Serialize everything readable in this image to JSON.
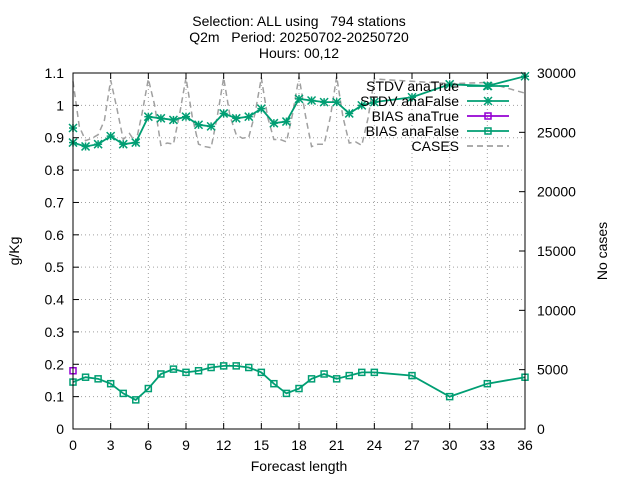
{
  "chart_data": {
    "type": "line",
    "title_lines": [
      "Selection: ALL using   794 stations",
      "Q2m   Period: 20250702-20250720",
      "Hours: 00,12"
    ],
    "xlabel": "Forecast length",
    "ylabel": "g/Kg",
    "y2label": "No cases",
    "xlim": [
      0,
      36
    ],
    "ylim": [
      0,
      1.1
    ],
    "y2lim": [
      0,
      30000
    ],
    "xticks": [
      0,
      3,
      6,
      9,
      12,
      15,
      18,
      21,
      24,
      27,
      30,
      33,
      36
    ],
    "yticks": [
      0,
      0.1,
      0.2,
      0.3,
      0.4,
      0.5,
      0.6,
      0.7,
      0.8,
      0.9,
      1,
      1.1
    ],
    "y2ticks": [
      0,
      5000,
      10000,
      15000,
      20000,
      25000,
      30000
    ],
    "grid": true,
    "legend_position": "top-right",
    "series": [
      {
        "name": "STDV anaTrue",
        "color": "#009e73",
        "axis": "y",
        "dash": "solid",
        "marker": "star",
        "x": [
          0
        ],
        "y": [
          0.93
        ]
      },
      {
        "name": "STDV anaFalse",
        "color": "#009e73",
        "axis": "y",
        "dash": "solid",
        "marker": "star",
        "x": [
          0,
          1,
          2,
          3,
          4,
          5,
          6,
          7,
          8,
          9,
          10,
          11,
          12,
          13,
          14,
          15,
          16,
          17,
          18,
          19,
          20,
          21,
          22,
          23,
          24,
          27,
          30,
          33,
          36
        ],
        "y": [
          0.885,
          0.873,
          0.88,
          0.905,
          0.88,
          0.885,
          0.965,
          0.96,
          0.955,
          0.965,
          0.94,
          0.935,
          0.975,
          0.96,
          0.965,
          0.99,
          0.945,
          0.95,
          1.02,
          1.015,
          1.01,
          1.01,
          0.975,
          1.0,
          1.01,
          1.025,
          1.065,
          1.06,
          1.09
        ]
      },
      {
        "name": "BIAS anaTrue",
        "color": "#9400d3",
        "axis": "y",
        "dash": "solid",
        "marker": "square",
        "x": [
          0
        ],
        "y": [
          0.18
        ]
      },
      {
        "name": "BIAS anaFalse",
        "color": "#009e73",
        "axis": "y",
        "dash": "solid",
        "marker": "square",
        "x": [
          0,
          1,
          2,
          3,
          4,
          5,
          6,
          7,
          8,
          9,
          10,
          11,
          12,
          13,
          14,
          15,
          16,
          17,
          18,
          19,
          20,
          21,
          22,
          23,
          24,
          27,
          30,
          33,
          36
        ],
        "y": [
          0.145,
          0.16,
          0.155,
          0.14,
          0.11,
          0.09,
          0.125,
          0.17,
          0.185,
          0.175,
          0.18,
          0.19,
          0.195,
          0.195,
          0.19,
          0.175,
          0.14,
          0.11,
          0.125,
          0.155,
          0.17,
          0.155,
          0.165,
          0.175,
          0.175,
          0.165,
          0.1,
          0.14,
          0.16
        ]
      },
      {
        "name": "CASES",
        "color": "#a0a0a0",
        "axis": "y2",
        "dash": "dashed",
        "marker": "none",
        "x": [
          0,
          0.5,
          1,
          1.5,
          2,
          2.5,
          3,
          3.5,
          4,
          4.5,
          5,
          5.5,
          6,
          6.5,
          7,
          7.5,
          8,
          8.5,
          9,
          9.5,
          10,
          10.5,
          11,
          11.5,
          12,
          12.5,
          13,
          13.5,
          14,
          14.5,
          15,
          15.5,
          16,
          16.5,
          17,
          17.5,
          18,
          18.5,
          19,
          19.5,
          20,
          20.5,
          21,
          21.5,
          22,
          22.5,
          23,
          23.5,
          24,
          27,
          30,
          33,
          36
        ],
        "y": [
          29300,
          25500,
          24300,
          24500,
          24800,
          26000,
          29400,
          27000,
          24400,
          24900,
          24100,
          26600,
          29500,
          27300,
          23900,
          24100,
          24000,
          26600,
          29600,
          26300,
          24000,
          23800,
          23700,
          26400,
          29600,
          26400,
          24800,
          24500,
          24600,
          26600,
          29600,
          26300,
          24400,
          24400,
          24200,
          26600,
          29700,
          26500,
          23800,
          24000,
          24000,
          26300,
          29700,
          26300,
          24100,
          24200,
          23900,
          26200,
          29500,
          29300,
          29100,
          29200,
          28300
        ]
      }
    ]
  }
}
